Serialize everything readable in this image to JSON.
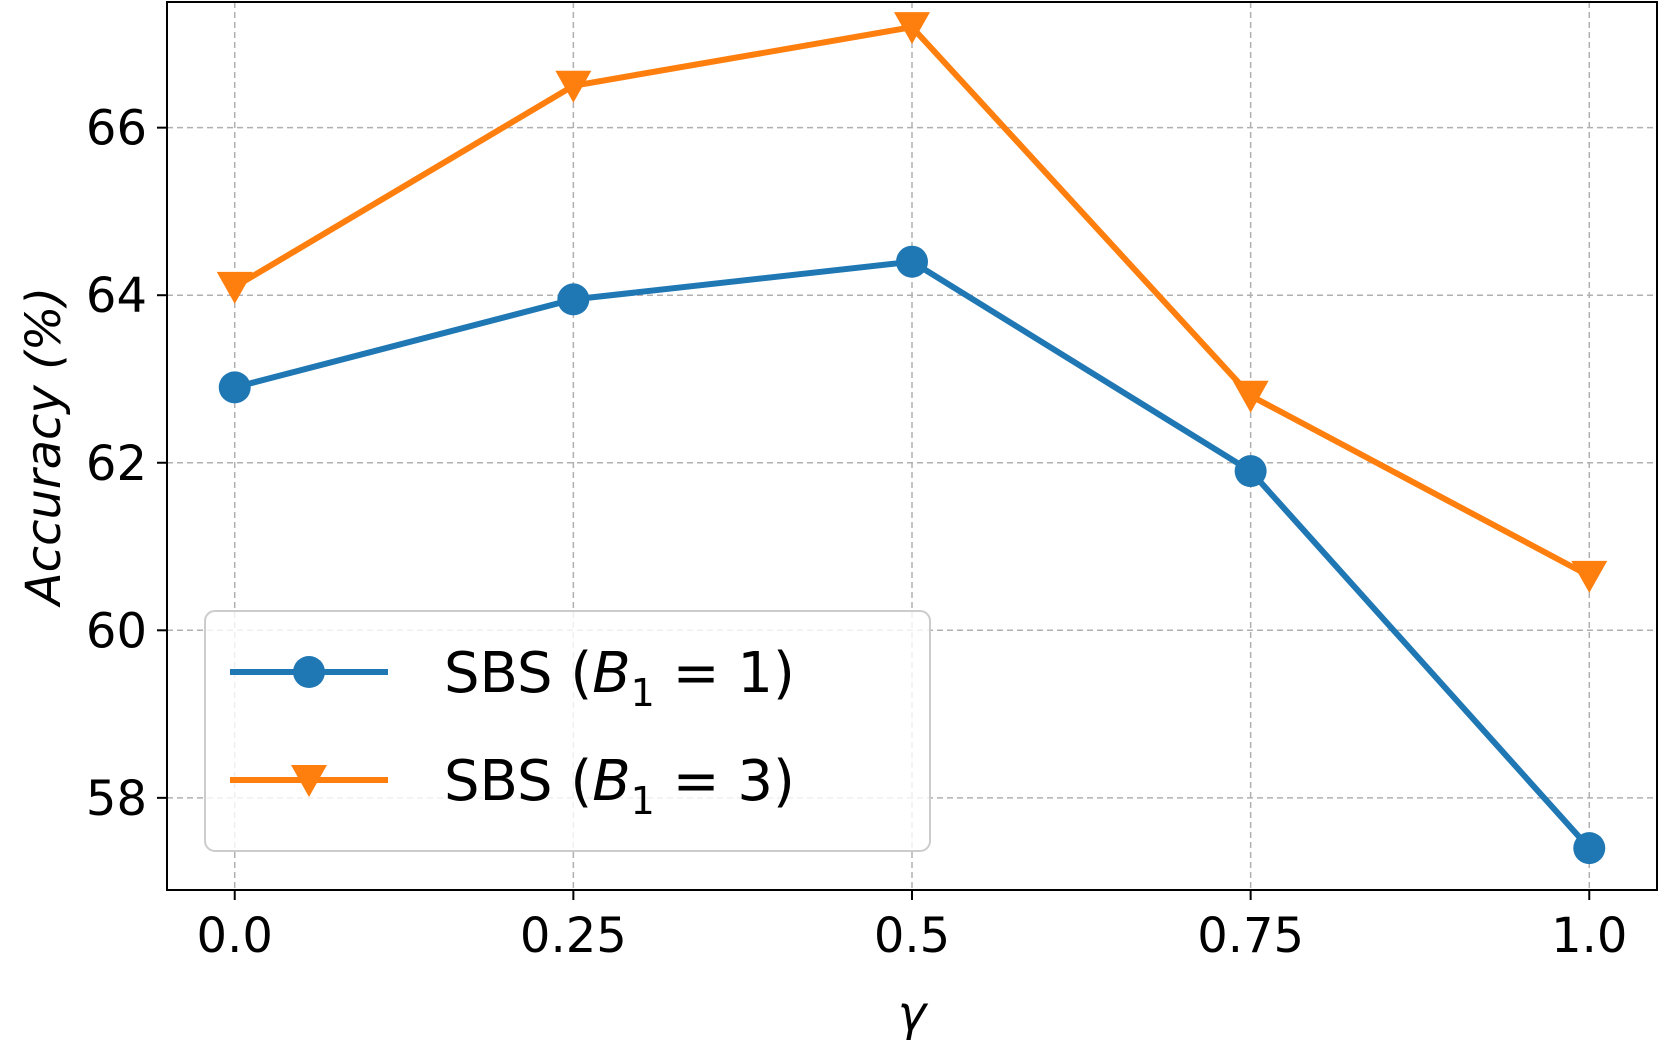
{
  "chart_data": {
    "type": "line",
    "title": "",
    "xlabel": "γ",
    "ylabel": "Accuracy (%)",
    "categories": [
      "0.0",
      "0.25",
      "0.5",
      "0.75",
      "1.0"
    ],
    "xlim": [
      -0.2,
      4.2
    ],
    "ylim": [
      56.9,
      67.5
    ],
    "yticks": [
      58,
      60,
      62,
      64,
      66
    ],
    "grid": true,
    "legend_position": "lower-left",
    "series": [
      {
        "name": "SBS (B1 = 1)",
        "label_prefix": "SBS (",
        "label_var": "B",
        "label_sub": "1",
        "label_suffix": " = 1)",
        "color": "#1f77b4",
        "marker": "circle",
        "values": [
          62.9,
          63.95,
          64.4,
          61.9,
          57.4
        ]
      },
      {
        "name": "SBS (B1 = 3)",
        "label_prefix": "SBS (",
        "label_var": "B",
        "label_sub": "1",
        "label_suffix": " = 3)",
        "color": "#ff7f0e",
        "marker": "triangle-down",
        "values": [
          64.1,
          66.5,
          67.2,
          62.8,
          60.65
        ]
      }
    ]
  }
}
